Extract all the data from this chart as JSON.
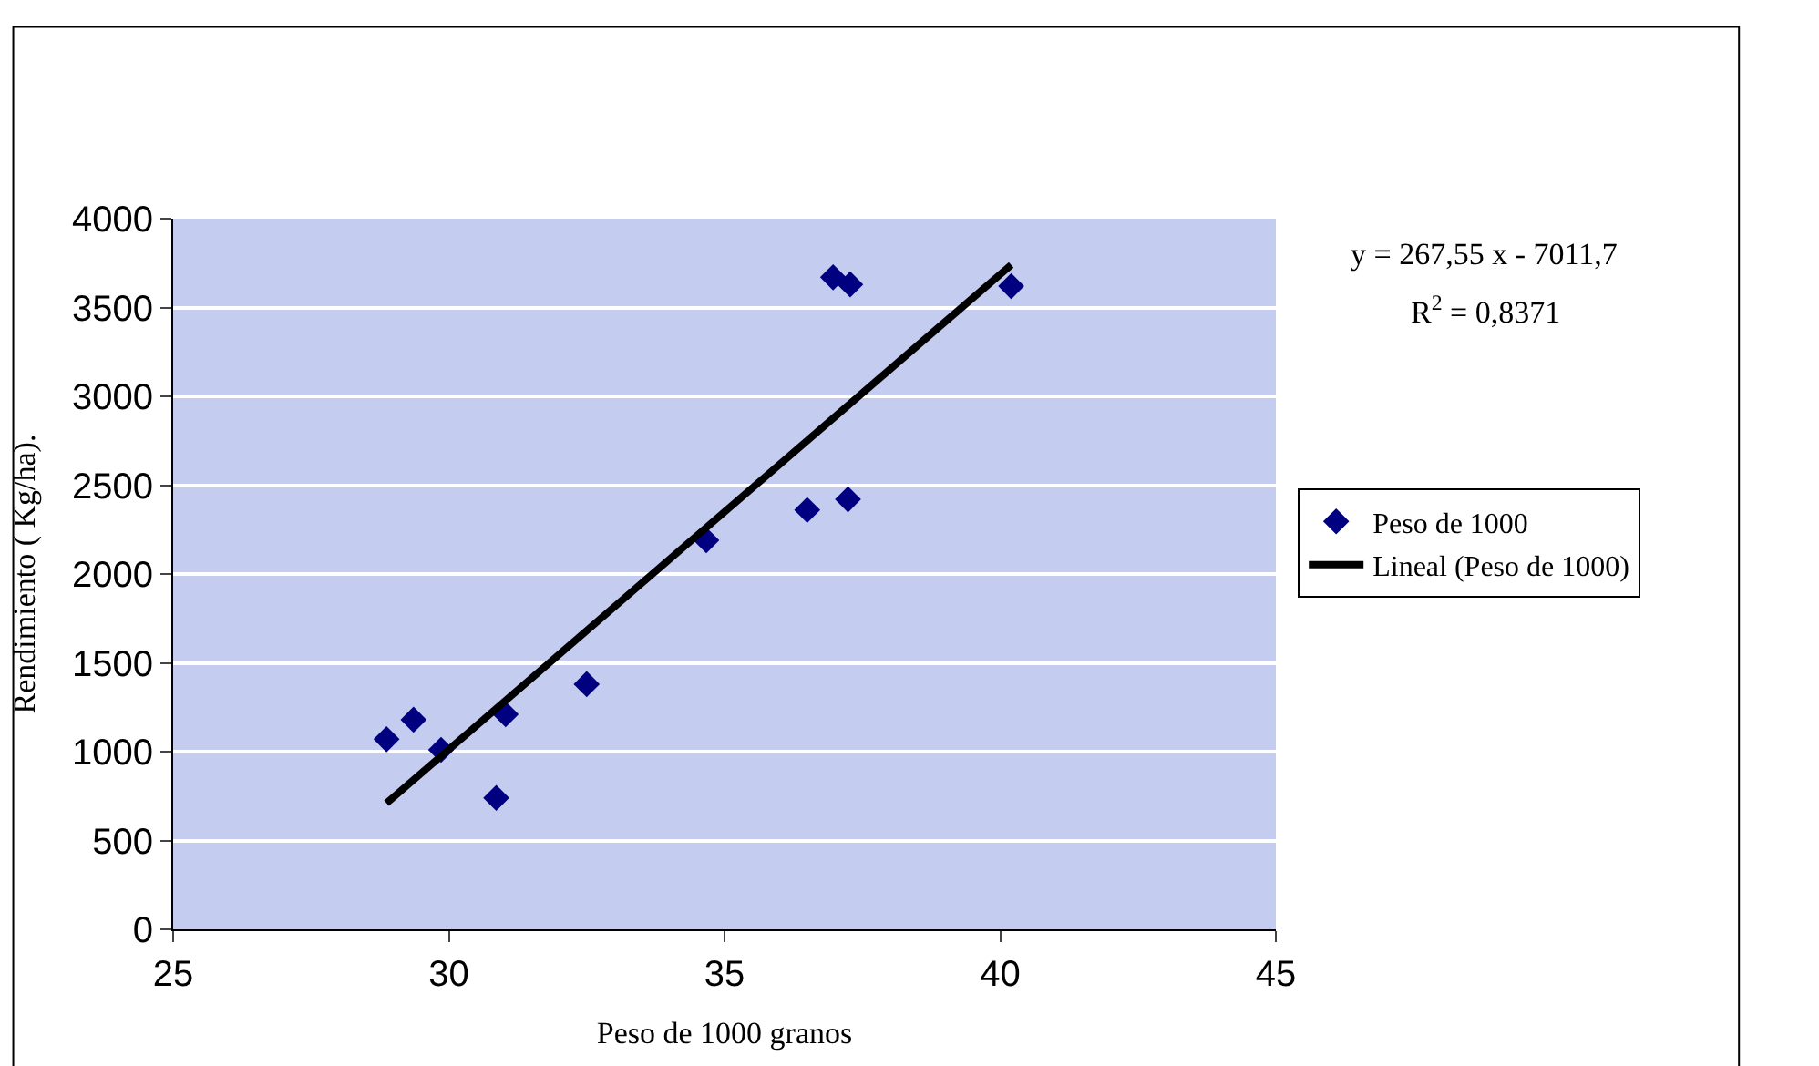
{
  "chart_data": {
    "type": "scatter",
    "xlabel": "Peso de 1000 granos",
    "ylabel": "Rendimiento ( Kg/ha).",
    "xlim": [
      25,
      45
    ],
    "xticks": [
      25,
      30,
      35,
      40,
      45
    ],
    "ylim": [
      0,
      4000
    ],
    "yticks": [
      0,
      500,
      1000,
      1500,
      2000,
      2500,
      3000,
      3500,
      4000
    ],
    "grid": "y",
    "legend": "right",
    "annotations": [
      "y = 267,55 x - 7011,7",
      "R$^{2}$ = 0,8371"
    ],
    "series": [
      {
        "name": "Peso de 1000",
        "color": "#000080",
        "marker": "diamond",
        "x": [
          28.87,
          29.36,
          29.86,
          30.86,
          31.03,
          32.5,
          34.67,
          36.5,
          36.97,
          37.24,
          37.28,
          40.2
        ],
        "values": [
          1070,
          1180,
          1010,
          740,
          1210,
          1380,
          2190,
          2360,
          3670,
          2420,
          3630,
          3620
        ]
      },
      {
        "name": "Lineal (Peso de 1000)",
        "type": "line",
        "color": "#000000",
        "x": [
          28.87,
          40.2
        ],
        "values": [
          710,
          3740
        ]
      }
    ]
  }
}
